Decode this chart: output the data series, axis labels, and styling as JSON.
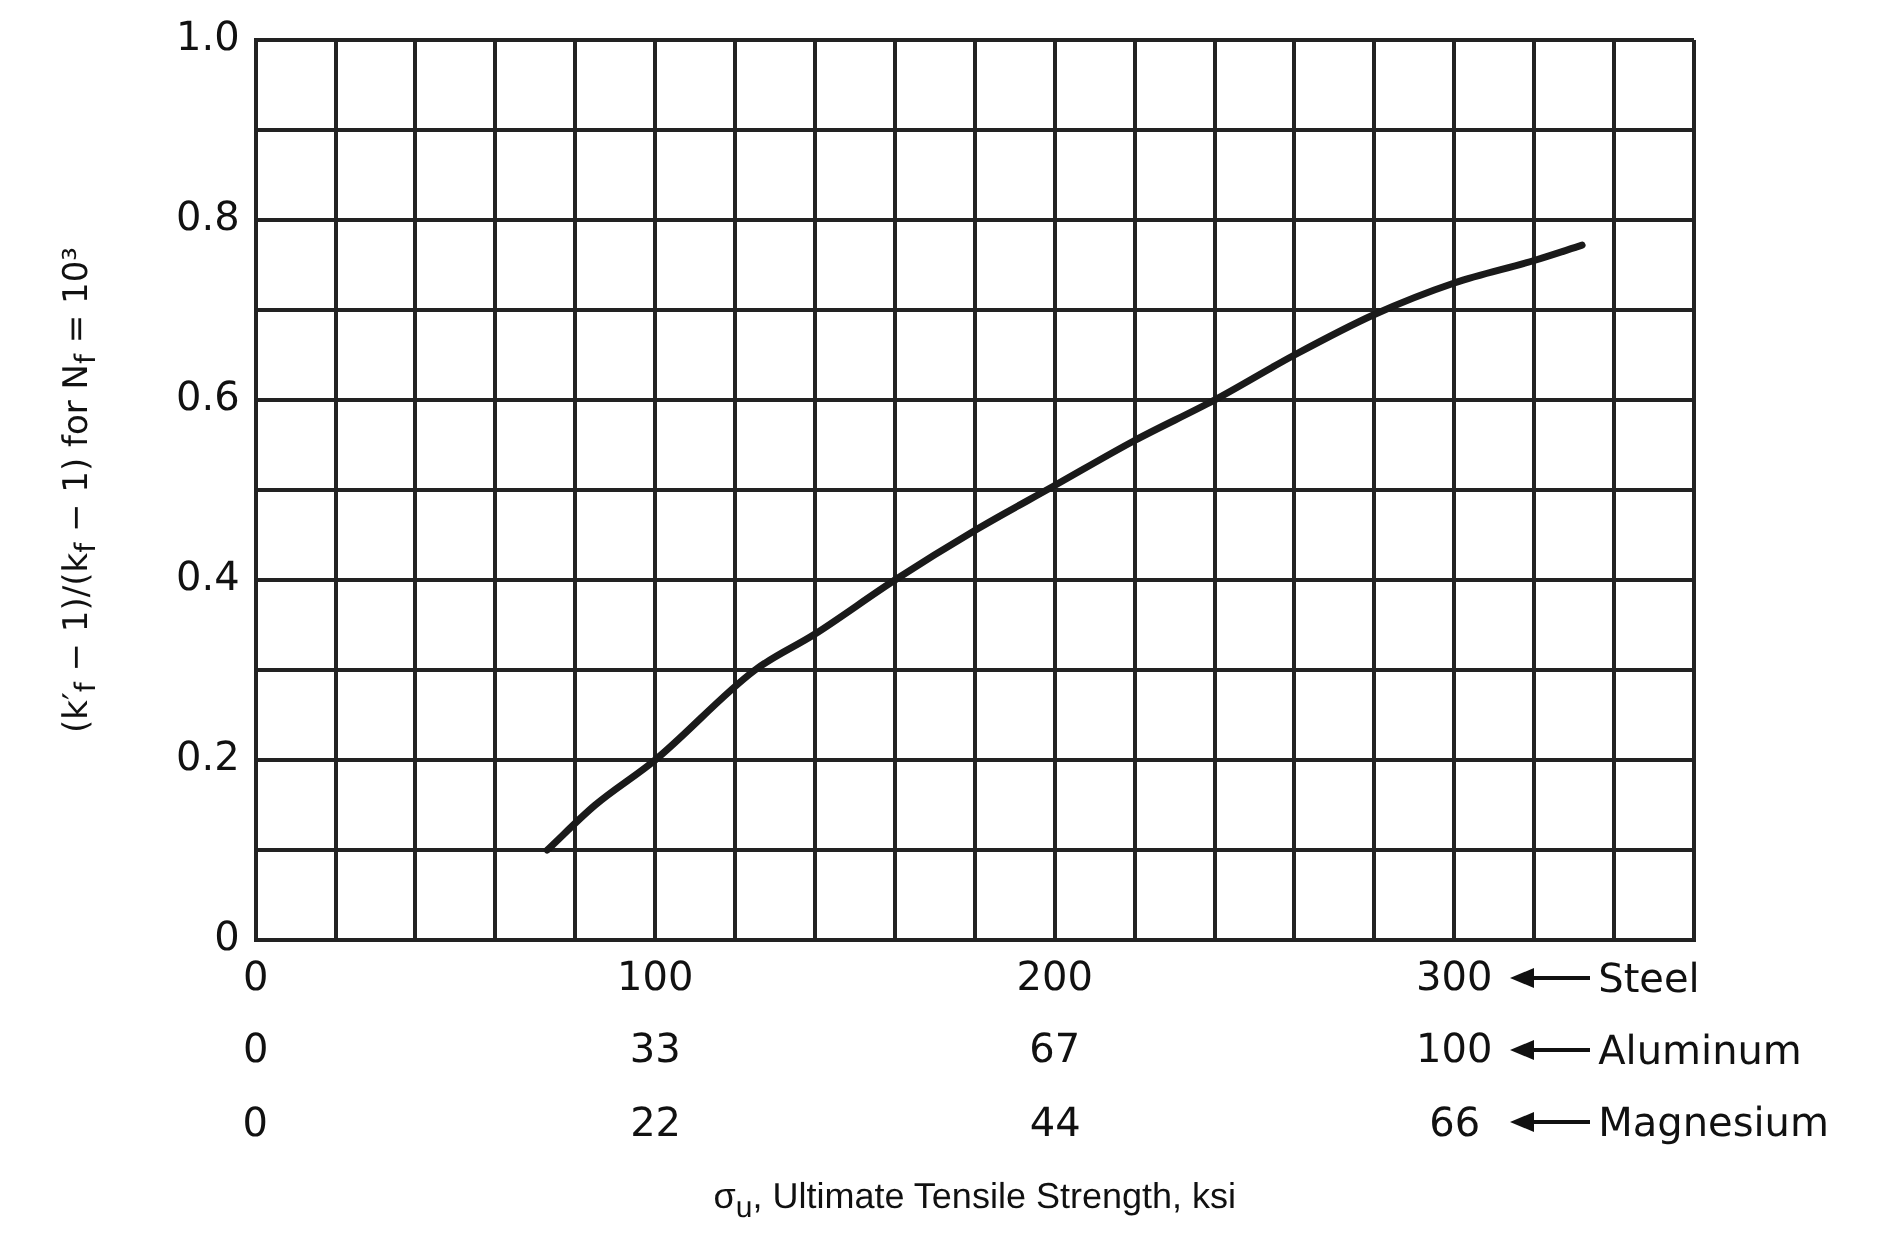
{
  "chart_data": {
    "type": "line",
    "xlabel": "σ$_{u}$, Ultimate Tensile Strength, ksi",
    "ylabel": "(k′$_{f}$ − 1)/(k$_{f}$ − 1) for N$_{f}$ = 10³",
    "x": [
      73,
      85,
      100,
      125,
      140,
      160,
      180,
      200,
      220,
      240,
      260,
      280,
      300,
      320,
      332
    ],
    "series": [
      {
        "color": "#1a1a1a",
        "values": [
          0.1,
          0.15,
          0.2,
          0.3,
          0.34,
          0.4,
          0.455,
          0.505,
          0.555,
          0.6,
          0.65,
          0.695,
          0.73,
          0.755,
          0.772
        ]
      }
    ],
    "xlim": [
      0,
      360
    ],
    "xticks": [
      0,
      {
        "value": 20,
        "label": null
      },
      {
        "value": 40,
        "label": null
      },
      {
        "value": 60,
        "label": null
      },
      {
        "value": 80,
        "label": null
      },
      100,
      {
        "value": 120,
        "label": null
      },
      {
        "value": 140,
        "label": null
      },
      {
        "value": 160,
        "label": null
      },
      {
        "value": 180,
        "label": null
      },
      200,
      {
        "value": 220,
        "label": null
      },
      {
        "value": 240,
        "label": null
      },
      {
        "value": 260,
        "label": null
      },
      {
        "value": 280,
        "label": null
      },
      300,
      {
        "value": 320,
        "label": null
      },
      {
        "value": 340,
        "label": null
      },
      {
        "value": 360,
        "label": null
      }
    ],
    "x2lim": [
      0,
      120
    ],
    "x2ticks": [
      0,
      {
        "value": 33.33,
        "label": "33"
      },
      {
        "value": 66.67,
        "label": "67"
      },
      100
    ],
    "ylim": [
      0,
      1
    ],
    "yticks": [
      0,
      {
        "value": 0.1,
        "label": null
      },
      0.2,
      {
        "value": 0.3,
        "label": null
      },
      0.4,
      {
        "value": 0.5,
        "label": null
      },
      0.6,
      {
        "value": 0.7,
        "label": null
      },
      0.8,
      {
        "value": 0.9,
        "label": null
      },
      {
        "value": 1,
        "label": "1.0"
      }
    ],
    "annotations": [
      "Steel",
      "Aluminum",
      "Magnesium",
      "0",
      "22",
      "44",
      "66"
    ],
    "grid": true,
    "legend": false,
    "marker": "none",
    "line_style": "solid"
  }
}
